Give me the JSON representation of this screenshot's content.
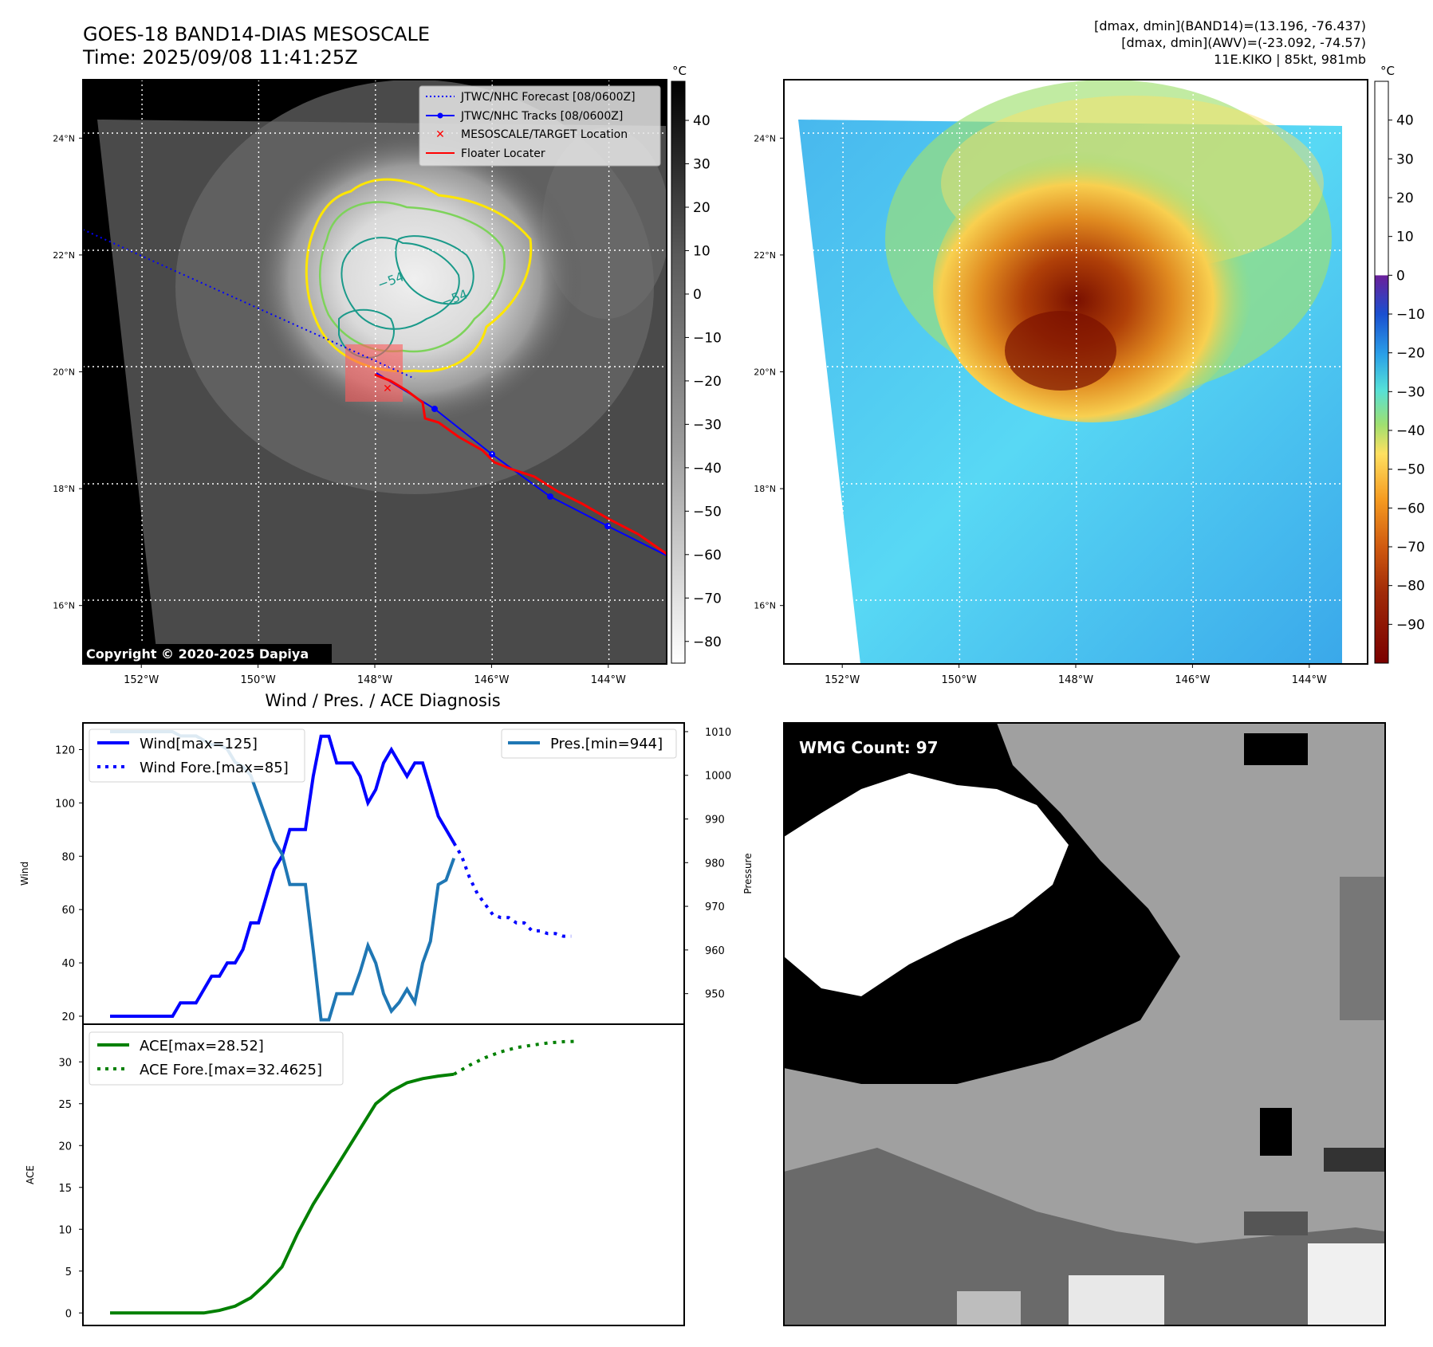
{
  "header": {
    "title_line1": "GOES-18 BAND14-DIAS MESOSCALE",
    "title_line2": "Time: 2025/09/08 11:41:25Z",
    "info_line1": "[dmax, dmin](BAND14)=(13.196, -76.437)",
    "info_line2": "[dmax, dmin](AWV)=(-23.092, -74.57)",
    "info_line3": "11E.KIKO | 85kt, 981mb"
  },
  "map_axes": {
    "lon_ticks": [
      "152°W",
      "150°W",
      "148°W",
      "146°W",
      "144°W"
    ],
    "lat_ticks": [
      "24°N",
      "22°N",
      "20°N",
      "18°N",
      "16°N"
    ],
    "lon_values": [
      -152,
      -150,
      -148,
      -146,
      -144
    ],
    "lat_values": [
      24,
      22,
      20,
      18,
      16
    ],
    "lon_range": [
      -153.0,
      -143.0
    ],
    "lat_range": [
      15.0,
      25.0
    ]
  },
  "ir_panel": {
    "colorbar_unit": "°C",
    "colorbar_ticks": [
      "40",
      "30",
      "20",
      "10",
      "0",
      "−10",
      "−20",
      "−30",
      "−40",
      "−50",
      "−60",
      "−70",
      "−80"
    ],
    "colorbar_values": [
      40,
      30,
      20,
      10,
      0,
      -10,
      -20,
      -30,
      -40,
      -50,
      -60,
      -70,
      -80
    ],
    "colorbar_range": [
      -85,
      49
    ],
    "contour_label_1": "−54",
    "contour_label_2": "−54",
    "copyright": "Copyright © 2020-2025 Dapiya",
    "legend": {
      "forecast": "JTWC/NHC Forecast [08/0600Z]",
      "tracks": "JTWC/NHC Tracks [08/0600Z]",
      "target": "MESOSCALE/TARGET Location",
      "floater": "Floater Locater"
    }
  },
  "awv_panel": {
    "colorbar_unit": "°C",
    "colorbar_ticks": [
      "40",
      "30",
      "20",
      "10",
      "0",
      "−10",
      "−20",
      "−30",
      "−40",
      "−50",
      "−60",
      "−70",
      "−80",
      "−90"
    ],
    "colorbar_values": [
      40,
      30,
      20,
      10,
      0,
      -10,
      -20,
      -30,
      -40,
      -50,
      -60,
      -70,
      -80,
      -90
    ],
    "colorbar_range": [
      -100,
      50
    ]
  },
  "diag_title": "Wind / Pres. / ACE Diagnosis",
  "wmg_label": "WMG Count: 97",
  "colors": {
    "wind": "#0000ff",
    "pressure": "#1f77b4",
    "ace": "#008000",
    "track": "#0000ff",
    "floater": "#ff0000",
    "contour_yellow": "#ffe600",
    "contour_green": "#7dd35a",
    "contour_teal": "#1a9a8a"
  },
  "chart_data": [
    {
      "type": "line",
      "name": "wind-pressure",
      "ylabel": "Wind",
      "ylabel_right": "Pressure",
      "ylim": [
        17,
        130
      ],
      "ylim_right": [
        943,
        1012
      ],
      "yticks": [
        20,
        40,
        60,
        80,
        100,
        120
      ],
      "yticks_right": [
        950,
        960,
        970,
        980,
        990,
        1000,
        1010
      ],
      "x_range": [
        0,
        70
      ],
      "series": [
        {
          "name": "Wind[max=125]",
          "axis": "left",
          "style": "solid",
          "x": [
            0,
            1,
            2,
            3,
            4,
            5,
            6,
            7,
            8,
            9,
            10,
            11,
            12,
            13,
            14,
            15,
            16,
            17,
            18,
            19,
            20,
            21,
            22,
            23,
            24,
            25,
            26,
            27,
            28,
            29,
            30,
            31,
            32,
            33,
            34,
            35,
            36,
            37,
            38,
            39,
            40,
            41,
            42,
            43,
            44,
            45,
            46,
            47
          ],
          "y": [
            20,
            20,
            20,
            20,
            20,
            20,
            20,
            20,
            20,
            25,
            25,
            25,
            30,
            35,
            35,
            40,
            40,
            45,
            55,
            55,
            65,
            75,
            80,
            90,
            90,
            90,
            110,
            125,
            125,
            115,
            115,
            115,
            110,
            100,
            105,
            115,
            120,
            115,
            110,
            115,
            115,
            105,
            95,
            90,
            85,
            null,
            null,
            null
          ]
        },
        {
          "name": "Wind Fore.[max=85]",
          "axis": "left",
          "style": "dotted",
          "x": [
            44,
            45,
            46,
            47,
            48,
            49,
            50,
            51,
            52,
            53,
            54,
            55,
            56,
            57,
            58,
            59
          ],
          "y": [
            85,
            80,
            72,
            66,
            62,
            58,
            57,
            57,
            55,
            55,
            52,
            52,
            51,
            51,
            50,
            50
          ]
        },
        {
          "name": "Pres.[min=944]",
          "axis": "right",
          "style": "solid",
          "x": [
            0,
            1,
            2,
            3,
            4,
            5,
            6,
            7,
            8,
            9,
            10,
            11,
            12,
            13,
            14,
            15,
            16,
            17,
            18,
            19,
            20,
            21,
            22,
            23,
            24,
            25,
            26,
            27,
            28,
            29,
            30,
            31,
            32,
            33,
            34,
            35,
            36,
            37,
            38,
            39,
            40,
            41,
            42,
            43,
            44
          ],
          "y": [
            1010,
            1010,
            1010,
            1010,
            1010,
            1010,
            1010,
            1010,
            1010,
            1009,
            1009,
            1009,
            1008,
            1007,
            1007,
            1006,
            1003,
            1002,
            1000,
            995,
            990,
            985,
            982,
            975,
            975,
            975,
            960,
            944,
            944,
            950,
            950,
            950,
            955,
            961,
            957,
            950,
            946,
            948,
            951,
            948,
            957,
            962,
            975,
            976,
            981
          ]
        }
      ]
    },
    {
      "type": "line",
      "name": "ace",
      "ylabel": "ACE",
      "ylim": [
        -1.5,
        34.5
      ],
      "yticks": [
        0,
        5,
        10,
        15,
        20,
        25,
        30
      ],
      "x_range": [
        0,
        70
      ],
      "series": [
        {
          "name": "ACE[max=28.52]",
          "style": "solid",
          "x": [
            0,
            2,
            4,
            6,
            8,
            10,
            12,
            14,
            16,
            18,
            20,
            22,
            24,
            26,
            28,
            30,
            32,
            34,
            36,
            38,
            40,
            42,
            44
          ],
          "y": [
            0,
            0,
            0,
            0,
            0,
            0,
            0,
            0.3,
            0.8,
            1.8,
            3.5,
            5.5,
            9.5,
            13,
            16,
            19,
            22,
            25,
            26.5,
            27.5,
            28,
            28.3,
            28.52
          ]
        },
        {
          "name": "ACE Fore.[max=32.4625]",
          "style": "dotted",
          "x": [
            44,
            46,
            48,
            50,
            52,
            54,
            56,
            58,
            60
          ],
          "y": [
            28.52,
            29.6,
            30.5,
            31.2,
            31.7,
            32.0,
            32.25,
            32.4,
            32.4625
          ]
        }
      ]
    }
  ]
}
